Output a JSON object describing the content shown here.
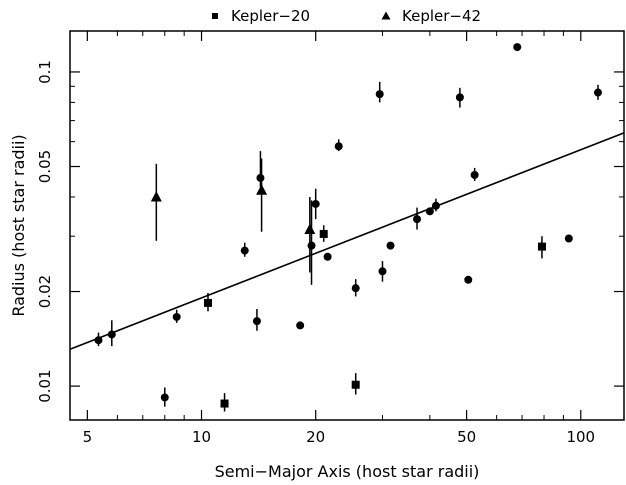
{
  "chart_data": {
    "type": "scatter",
    "xlabel": "Semi−Major Axis (host star radii)",
    "ylabel": "Radius (host star radii)",
    "xscale": "log",
    "yscale": "log",
    "xlim": [
      4.5,
      130
    ],
    "ylim": [
      0.0078,
      0.135
    ],
    "grid": false,
    "legend_position": "top",
    "x_ticks": [
      {
        "value": 5,
        "label": "5"
      },
      {
        "value": 10,
        "label": "10"
      },
      {
        "value": 20,
        "label": "20"
      },
      {
        "value": 50,
        "label": "50"
      },
      {
        "value": 100,
        "label": "100"
      }
    ],
    "y_ticks": [
      {
        "value": 0.01,
        "label": "0.01"
      },
      {
        "value": 0.02,
        "label": "0.02"
      },
      {
        "value": 0.05,
        "label": "0.05"
      },
      {
        "value": 0.1,
        "label": "0.1"
      }
    ],
    "series": [
      {
        "marker": "circle",
        "points": [
          {
            "x": 5.35,
            "y": 0.014,
            "ylo": 0.0134,
            "yhi": 0.0148
          },
          {
            "x": 5.8,
            "y": 0.0146,
            "ylo": 0.0134,
            "yhi": 0.0162
          },
          {
            "x": 8.0,
            "y": 0.0092,
            "ylo": 0.0086,
            "yhi": 0.0099
          },
          {
            "x": 8.6,
            "y": 0.0166,
            "ylo": 0.0159,
            "yhi": 0.0175
          },
          {
            "x": 13.0,
            "y": 0.027,
            "ylo": 0.0258,
            "yhi": 0.0286
          },
          {
            "x": 14.0,
            "y": 0.0161,
            "ylo": 0.015,
            "yhi": 0.0176
          },
          {
            "x": 14.3,
            "y": 0.046,
            "ylo": 0.043,
            "yhi": 0.056
          },
          {
            "x": 18.2,
            "y": 0.0156
          },
          {
            "x": 19.5,
            "y": 0.028,
            "ylo": 0.021,
            "yhi": 0.039
          },
          {
            "x": 20.0,
            "y": 0.038,
            "ylo": 0.034,
            "yhi": 0.0425
          },
          {
            "x": 21.5,
            "y": 0.0258
          },
          {
            "x": 23.0,
            "y": 0.058,
            "ylo": 0.056,
            "yhi": 0.061
          },
          {
            "x": 25.5,
            "y": 0.0205,
            "ylo": 0.0193,
            "yhi": 0.0219
          },
          {
            "x": 29.5,
            "y": 0.085,
            "ylo": 0.08,
            "yhi": 0.093
          },
          {
            "x": 30.0,
            "y": 0.0232,
            "ylo": 0.0215,
            "yhi": 0.025
          },
          {
            "x": 31.5,
            "y": 0.028
          },
          {
            "x": 37.0,
            "y": 0.034,
            "ylo": 0.0315,
            "yhi": 0.037
          },
          {
            "x": 40.0,
            "y": 0.036
          },
          {
            "x": 41.5,
            "y": 0.0375,
            "ylo": 0.036,
            "yhi": 0.0395
          },
          {
            "x": 48.0,
            "y": 0.083,
            "ylo": 0.077,
            "yhi": 0.089
          },
          {
            "x": 50.5,
            "y": 0.0218
          },
          {
            "x": 52.5,
            "y": 0.047,
            "ylo": 0.045,
            "yhi": 0.0495
          },
          {
            "x": 68.0,
            "y": 0.12,
            "ylo": 0.117,
            "yhi": 0.1225
          },
          {
            "x": 93.0,
            "y": 0.0295
          },
          {
            "x": 111.0,
            "y": 0.086,
            "ylo": 0.0815,
            "yhi": 0.091
          }
        ]
      },
      {
        "name": "Kepler−20",
        "marker": "square",
        "points": [
          {
            "x": 10.4,
            "y": 0.0184,
            "ylo": 0.0173,
            "yhi": 0.0198
          },
          {
            "x": 11.5,
            "y": 0.0088,
            "ylo": 0.0083,
            "yhi": 0.0095
          },
          {
            "x": 21.0,
            "y": 0.0305,
            "ylo": 0.0288,
            "yhi": 0.0325
          },
          {
            "x": 25.5,
            "y": 0.0101,
            "ylo": 0.0094,
            "yhi": 0.011
          },
          {
            "x": 79.0,
            "y": 0.0278,
            "ylo": 0.0255,
            "yhi": 0.03
          }
        ]
      },
      {
        "name": "Kepler−42",
        "marker": "triangle",
        "points": [
          {
            "x": 7.6,
            "y": 0.04,
            "ylo": 0.029,
            "yhi": 0.051
          },
          {
            "x": 14.4,
            "y": 0.042,
            "ylo": 0.031,
            "yhi": 0.053
          },
          {
            "x": 19.3,
            "y": 0.0315,
            "ylo": 0.023,
            "yhi": 0.04
          }
        ]
      }
    ],
    "fit_line": {
      "x": [
        4.5,
        130
      ],
      "y": [
        0.0131,
        0.064
      ]
    }
  }
}
